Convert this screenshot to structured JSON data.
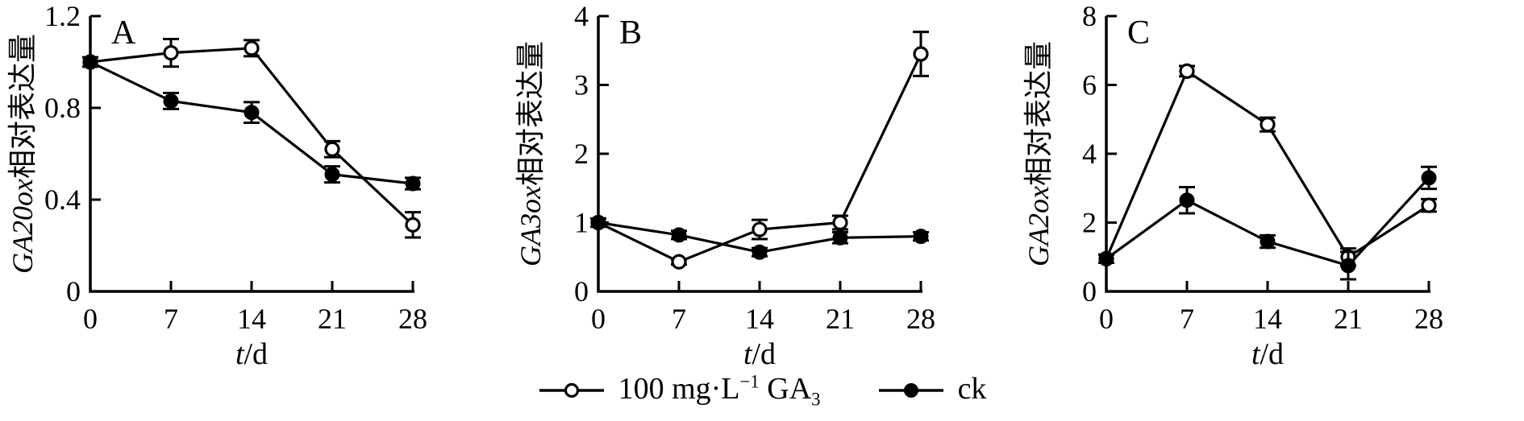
{
  "figure": {
    "background": "#ffffff",
    "ink": "#000000"
  },
  "legend": {
    "position": "bottom-center",
    "items": [
      {
        "marker": "open-circle",
        "label_prefix": "100 mg·L",
        "label_sup": "−1",
        "label_mid": " GA",
        "label_sub": "3"
      },
      {
        "marker": "filled-circle",
        "label_prefix": "ck",
        "label_sup": "",
        "label_mid": "",
        "label_sub": ""
      }
    ]
  },
  "chart_data": [
    {
      "type": "line",
      "panel_label": "A",
      "title": "",
      "ylabel": "GA20ox相对表达量",
      "ylabel_parts": {
        "italic": "GA20ox",
        "regular": "相对表达量"
      },
      "xlabel": "t/d",
      "xlabel_parts": {
        "italic": "t",
        "regular": "/d"
      },
      "x": [
        0,
        7,
        14,
        21,
        28
      ],
      "xtick_labels": [
        "0",
        "7",
        "14",
        "21",
        "28"
      ],
      "xlim": [
        0,
        28
      ],
      "ylim": [
        0,
        1.2
      ],
      "yticks": [
        0,
        0.4,
        0.8,
        1.2
      ],
      "ytick_labels": [
        "0",
        "0.4",
        "0.8",
        "1.2"
      ],
      "grid": false,
      "series": [
        {
          "id": "ga3",
          "name": "100 mg·L−1 GA3",
          "marker": "open-circle",
          "values": [
            1.0,
            1.04,
            1.06,
            0.62,
            0.29
          ],
          "errors": [
            0.02,
            0.06,
            0.035,
            0.035,
            0.055
          ]
        },
        {
          "id": "ck",
          "name": "ck",
          "marker": "filled-circle",
          "values": [
            1.0,
            0.83,
            0.78,
            0.51,
            0.47
          ],
          "errors": [
            0.02,
            0.035,
            0.045,
            0.035,
            0.025
          ]
        }
      ]
    },
    {
      "type": "line",
      "panel_label": "B",
      "title": "",
      "ylabel": "GA3ox相对表达量",
      "ylabel_parts": {
        "italic": "GA3ox",
        "regular": "相对表达量"
      },
      "xlabel": "t/d",
      "xlabel_parts": {
        "italic": "t",
        "regular": "/d"
      },
      "x": [
        0,
        7,
        14,
        21,
        28
      ],
      "xtick_labels": [
        "0",
        "7",
        "14",
        "21",
        "28"
      ],
      "xlim": [
        0,
        28
      ],
      "ylim": [
        0,
        4
      ],
      "yticks": [
        0,
        1,
        2,
        3,
        4
      ],
      "ytick_labels": [
        "0",
        "1",
        "2",
        "3",
        "4"
      ],
      "grid": false,
      "series": [
        {
          "id": "ga3",
          "name": "100 mg·L−1 GA3",
          "marker": "open-circle",
          "values": [
            1.0,
            0.43,
            0.9,
            1.0,
            3.45
          ],
          "errors": [
            0.06,
            0.04,
            0.14,
            0.1,
            0.32
          ]
        },
        {
          "id": "ck",
          "name": "ck",
          "marker": "filled-circle",
          "values": [
            1.0,
            0.82,
            0.57,
            0.78,
            0.8
          ],
          "errors": [
            0.06,
            0.06,
            0.06,
            0.08,
            0.06
          ]
        }
      ]
    },
    {
      "type": "line",
      "panel_label": "C",
      "title": "",
      "ylabel": "GA2ox相对表达量",
      "ylabel_parts": {
        "italic": "GA2ox",
        "regular": "相对表达量"
      },
      "xlabel": "t/d",
      "xlabel_parts": {
        "italic": "t",
        "regular": "/d"
      },
      "x": [
        0,
        7,
        14,
        21,
        28
      ],
      "xtick_labels": [
        "0",
        "7",
        "14",
        "21",
        "28"
      ],
      "xlim": [
        0,
        28
      ],
      "ylim": [
        0,
        8
      ],
      "yticks": [
        0,
        2,
        4,
        6,
        8
      ],
      "ytick_labels": [
        "0",
        "2",
        "4",
        "6",
        "8"
      ],
      "grid": false,
      "series": [
        {
          "id": "ga3",
          "name": "100 mg·L−1 GA3",
          "marker": "open-circle",
          "values": [
            0.95,
            6.4,
            4.85,
            1.0,
            2.5
          ],
          "errors": [
            0.12,
            0.15,
            0.2,
            0.25,
            0.18
          ]
        },
        {
          "id": "ck",
          "name": "ck",
          "marker": "filled-circle",
          "values": [
            0.95,
            2.65,
            1.45,
            0.75,
            3.3
          ],
          "errors": [
            0.12,
            0.38,
            0.18,
            0.4,
            0.32
          ]
        }
      ]
    }
  ]
}
